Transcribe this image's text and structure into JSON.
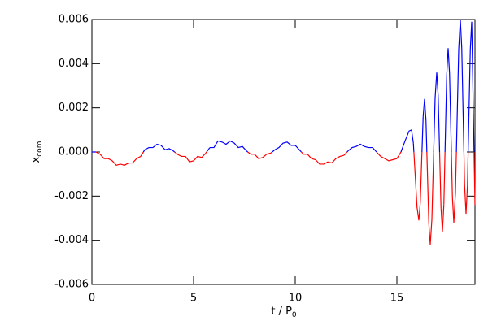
{
  "chart_data": {
    "type": "line",
    "xlabel": {
      "text": "t / P",
      "subscript": "0"
    },
    "ylabel": {
      "text": "x",
      "subscript": "com"
    },
    "positive_color": "#0000ff",
    "negative_color": "#ff0000",
    "xlim": [
      0,
      18.84
    ],
    "xticks": [
      0,
      5,
      10,
      15
    ],
    "ylim": [
      -0.006,
      0.006
    ],
    "yticks": [
      -0.006,
      -0.004,
      -0.002,
      {
        "value": 0,
        "label": "0.000"
      },
      0.002,
      0.004,
      0.006
    ],
    "x": [
      0,
      0.2,
      0.4,
      0.6,
      0.8,
      1.0,
      1.2,
      1.4,
      1.6,
      1.8,
      2.0,
      2.2,
      2.4,
      2.6,
      2.8,
      3.0,
      3.2,
      3.4,
      3.6,
      3.8,
      4.0,
      4.2,
      4.4,
      4.6,
      4.8,
      5.0,
      5.2,
      5.4,
      5.6,
      5.8,
      6.0,
      6.2,
      6.4,
      6.6,
      6.8,
      7.0,
      7.2,
      7.4,
      7.6,
      7.8,
      8.0,
      8.2,
      8.4,
      8.6,
      8.8,
      9.0,
      9.2,
      9.4,
      9.6,
      9.8,
      10.0,
      10.2,
      10.4,
      10.6,
      10.8,
      11.0,
      11.2,
      11.4,
      11.6,
      11.8,
      12.0,
      12.2,
      12.4,
      12.6,
      12.8,
      13.0,
      13.2,
      13.4,
      13.6,
      13.8,
      14.0,
      14.2,
      14.4,
      14.6,
      14.8,
      15.0,
      15.2,
      15.4,
      15.6,
      15.72,
      15.81,
      15.9,
      15.99,
      16.08,
      16.15,
      16.22,
      16.29,
      16.36,
      16.43,
      16.5,
      16.57,
      16.64,
      16.72,
      16.8,
      16.88,
      16.96,
      17.03,
      17.1,
      17.17,
      17.24,
      17.31,
      17.38,
      17.45,
      17.52,
      17.59,
      17.66,
      17.73,
      17.8,
      17.88,
      17.96,
      18.04,
      18.12,
      18.19,
      18.26,
      18.33,
      18.4,
      18.47,
      18.54,
      18.61,
      18.68,
      18.76,
      18.84
    ],
    "values": [
      0,
      0,
      -0.0001,
      -0.0003,
      -0.0003,
      -0.0004,
      -0.0006,
      -0.00055,
      -0.0006,
      -0.0005,
      -0.0005,
      -0.0003,
      -0.0002,
      0.0001,
      0.0002,
      0.0002,
      0.00035,
      0.0003,
      0.0001,
      0.00015,
      5e-05,
      -0.0001,
      -0.0002,
      -0.0002,
      -0.00045,
      -0.0004,
      -0.0002,
      -0.00025,
      -5e-05,
      0.0002,
      0.0002,
      0.0005,
      0.00045,
      0.00035,
      0.0005,
      0.0004,
      0.0002,
      0.00025,
      5e-05,
      -0.0001,
      -0.0001,
      -0.0003,
      -0.00025,
      -0.0001,
      -5e-05,
      0.0001,
      0.0002,
      0.0004,
      0.00045,
      0.0003,
      0.0003,
      0.0001,
      -0.0001,
      -0.0001,
      -0.0003,
      -0.00035,
      -0.00055,
      -0.00055,
      -0.00045,
      -0.0005,
      -0.0003,
      -0.0002,
      -0.00015,
      5e-05,
      0.0002,
      0.00025,
      0.00035,
      0.00025,
      0.0002,
      0.0002,
      0,
      -0.0002,
      -0.0003,
      -0.0004,
      -0.00035,
      -0.0003,
      0,
      0.0005,
      0.00095,
      0.001,
      0.0004,
      -0.00105,
      -0.0025,
      -0.0031,
      -0.00229,
      -0.00035,
      0.00159,
      0.0024,
      0.00143,
      -0.0009,
      -0.00323,
      -0.0042,
      -0.00306,
      -0.0003,
      0.00246,
      0.0036,
      0.00255,
      0,
      -0.00255,
      -0.0036,
      -0.00238,
      0.00055,
      0.00348,
      0.0047,
      0.00354,
      0.00075,
      -0.00204,
      -0.0032,
      -0.00185,
      0.0014,
      0.00465,
      0.006,
      0.00471,
      0.0016,
      -0.00151,
      -0.0028,
      -0.00153,
      0.00155,
      0.00463,
      0.0059,
      0.0018,
      -0.0024
    ]
  }
}
